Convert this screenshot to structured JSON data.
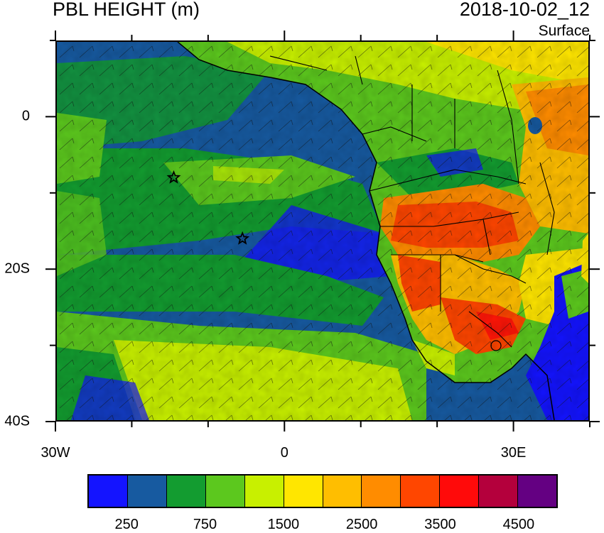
{
  "header": {
    "title": "PBL HEIGHT (m)",
    "datetime": "2018-10-02_12",
    "level": "Surface"
  },
  "axes": {
    "x_ticks": [
      {
        "lon": -30,
        "label": "30W"
      },
      {
        "lon": 0,
        "label": "0"
      },
      {
        "lon": 30,
        "label": "30E"
      }
    ],
    "y_ticks": [
      {
        "lat": 0,
        "label": "0"
      },
      {
        "lat": -20,
        "label": "20S"
      },
      {
        "lat": -40,
        "label": "40S"
      }
    ],
    "lon_range": [
      -30,
      40
    ],
    "lat_range": [
      -40,
      10
    ]
  },
  "colorbar": {
    "colors": [
      "#1414ff",
      "#175aa0",
      "#139c30",
      "#5cc81e",
      "#c8f000",
      "#ffe600",
      "#ffbe00",
      "#ff8c00",
      "#ff4600",
      "#ff0a0a",
      "#b4003c",
      "#640082"
    ],
    "labels": [
      {
        "value": 250,
        "text": "250"
      },
      {
        "value": 750,
        "text": "750"
      },
      {
        "value": 1500,
        "text": "1500"
      },
      {
        "value": 2500,
        "text": "2500"
      },
      {
        "value": 3500,
        "text": "3500"
      },
      {
        "value": 4500,
        "text": "4500"
      }
    ]
  },
  "markers": [
    {
      "name": "star",
      "lon": -14.5,
      "lat": -8
    },
    {
      "name": "star",
      "lon": -5.5,
      "lat": -16
    }
  ]
}
